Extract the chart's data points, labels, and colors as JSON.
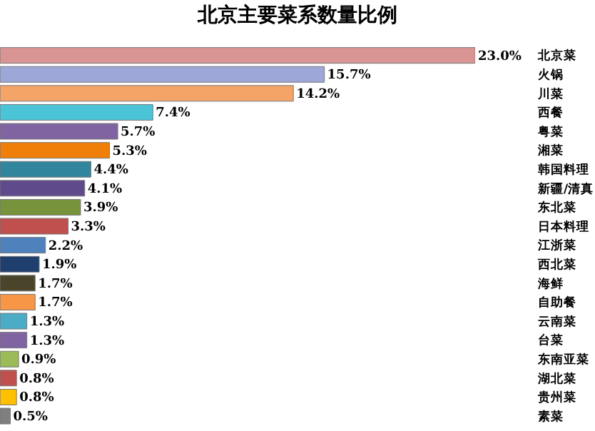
{
  "chart_data": {
    "type": "bar",
    "orientation": "horizontal",
    "title": "北京主要菜系数量比例",
    "categories": [
      "北京菜",
      "火锅",
      "川菜",
      "西餐",
      "粤菜",
      "湘菜",
      "韩国料理",
      "新疆/清真",
      "东北菜",
      "日本料理",
      "江浙菜",
      "西北菜",
      "海鲜",
      "自助餐",
      "云南菜",
      "台菜",
      "东南亚菜",
      "湖北菜",
      "贵州菜",
      "素菜"
    ],
    "values": [
      23.0,
      15.7,
      14.2,
      7.4,
      5.7,
      5.3,
      4.4,
      4.1,
      3.9,
      3.3,
      2.2,
      1.9,
      1.7,
      1.7,
      1.3,
      1.3,
      0.9,
      0.8,
      0.8,
      0.5
    ],
    "value_labels": [
      "23.0%",
      "15.7%",
      "14.2%",
      "7.4%",
      "5.7%",
      "5.3%",
      "4.4%",
      "4.1%",
      "3.9%",
      "3.3%",
      "2.2%",
      "1.9%",
      "1.7%",
      "1.7%",
      "1.3%",
      "1.3%",
      "0.9%",
      "0.8%",
      "0.8%",
      "0.5%"
    ],
    "colors": [
      "#d99594",
      "#9da8d8",
      "#f5a468",
      "#4bc4d8",
      "#8064a2",
      "#f07f09",
      "#31859c",
      "#5f4b8b",
      "#77933c",
      "#c0504d",
      "#4f81bd",
      "#1f3f6e",
      "#4a452a",
      "#f79646",
      "#4bacc6",
      "#8064a2",
      "#9bbb59",
      "#c0504d",
      "#ffc000",
      "#7f7f7f"
    ],
    "legend": false
  }
}
